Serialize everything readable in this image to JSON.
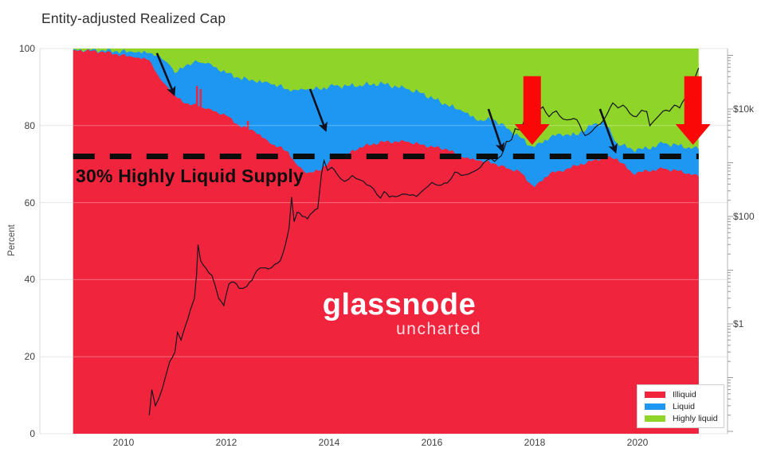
{
  "title": "Entity-adjusted Realized Cap",
  "watermark": {
    "brand": "glassnode",
    "sub": "uncharted"
  },
  "annotation": {
    "label": "30% Highly Liquid Supply",
    "level_pct": 72
  },
  "legend": [
    {
      "label": "Illiquid",
      "color": "#f0253d"
    },
    {
      "label": "Liquid",
      "color": "#1e97f3"
    },
    {
      "label": "Highly liquid",
      "color": "#8fd428"
    }
  ],
  "colors": {
    "red_arrow": "#fa0707",
    "black_arrow": "#10101e",
    "dashed_line": "#0c0c0c",
    "price_line": "#15151f"
  },
  "axes": {
    "left_label": "Percent",
    "left_ticks": [
      0,
      20,
      40,
      60,
      80,
      100
    ],
    "right_ticks": [
      {
        "label": "$10k",
        "value": 10000
      },
      {
        "label": "$100",
        "value": 100
      },
      {
        "label": "$1",
        "value": 1
      }
    ],
    "x_ticks": [
      2010,
      2012,
      2014,
      2016,
      2018,
      2020
    ]
  },
  "arrows": {
    "black": [
      {
        "from": [
          2010.65,
          98.8
        ],
        "to": [
          2010.98,
          88.2
        ]
      },
      {
        "from": [
          2013.63,
          89.5
        ],
        "to": [
          2013.93,
          78.9
        ]
      },
      {
        "from": [
          2017.1,
          84.3
        ],
        "to": [
          2017.37,
          73.6
        ]
      },
      {
        "from": [
          2019.27,
          84.3
        ],
        "to": [
          2019.57,
          73.3
        ]
      }
    ],
    "red": [
      {
        "year": 2017.95,
        "top_pct": 92.8,
        "tip_pct": 75.0
      },
      {
        "year": 2021.08,
        "top_pct": 92.8,
        "tip_pct": 75.0
      }
    ]
  },
  "chart_data": {
    "type": "area",
    "stacked": true,
    "title": "Entity-adjusted Realized Cap",
    "xlabel": "",
    "ylabel": "Percent",
    "ylim_pct": [
      0,
      100
    ],
    "x_range_years": [
      2009.0,
      2021.2
    ],
    "y2_scale": "log",
    "y2_label_ticks": [
      "$10k",
      "$100",
      "$1"
    ],
    "grid": true,
    "legend_position": "bottom-right",
    "x_years": [
      2009.02,
      2009.6,
      2010.2,
      2010.5,
      2010.7,
      2010.9,
      2011.0,
      2011.2,
      2011.45,
      2011.6,
      2011.8,
      2012.0,
      2012.25,
      2012.55,
      2012.85,
      2013.2,
      2013.35,
      2013.55,
      2013.8,
      2014.1,
      2014.35,
      2014.6,
      2015.05,
      2015.5,
      2015.8,
      2016.3,
      2016.6,
      2016.9,
      2017.2,
      2017.5,
      2017.7,
      2017.9,
      2018.0,
      2018.3,
      2018.5,
      2018.8,
      2019.1,
      2019.35,
      2019.6,
      2019.9,
      2020.2,
      2020.5,
      2020.8,
      2021.0,
      2021.19
    ],
    "series": [
      {
        "name": "Illiquid",
        "color": "#f0253d",
        "values": [
          99.6,
          99.2,
          97.7,
          97.0,
          92.4,
          89.3,
          87.8,
          85.7,
          85.1,
          84.3,
          83.7,
          82.6,
          80.0,
          78.5,
          75.4,
          73.3,
          70.2,
          67.6,
          68.2,
          71.7,
          72.5,
          74.4,
          75.8,
          75.8,
          75.0,
          73.8,
          71.7,
          70.9,
          70.2,
          68.8,
          68.2,
          65.1,
          64.0,
          67.6,
          68.2,
          69.6,
          70.7,
          71.7,
          71.5,
          67.6,
          68.2,
          68.8,
          68.2,
          67.6,
          66.7
        ]
      },
      {
        "name": "Liquid",
        "color": "#1e97f3",
        "values": [
          0.2,
          0.4,
          1.3,
          1.8,
          5.7,
          6.4,
          5.8,
          9.8,
          11.4,
          11.8,
          11.5,
          11.0,
          12.4,
          13.0,
          15.5,
          16.2,
          19.1,
          21.7,
          21.3,
          18.6,
          17.8,
          16.1,
          15.1,
          13.7,
          13.4,
          11.5,
          12.0,
          10.3,
          11.4,
          10.3,
          8.9,
          9.7,
          10.4,
          9.3,
          9.7,
          7.9,
          9.3,
          9.3,
          4.0,
          6.2,
          5.8,
          6.6,
          6.6,
          6.8,
          7.1
        ]
      },
      {
        "name": "Highly liquid",
        "color": "#8fd428",
        "values": [
          0.2,
          0.4,
          1.0,
          1.2,
          1.9,
          4.3,
          6.4,
          4.5,
          3.5,
          3.9,
          4.8,
          6.4,
          7.6,
          8.5,
          9.1,
          10.5,
          10.7,
          10.7,
          10.5,
          9.7,
          9.7,
          9.5,
          9.1,
          10.5,
          11.6,
          14.7,
          16.3,
          18.8,
          18.4,
          20.9,
          22.9,
          25.2,
          25.6,
          23.1,
          22.1,
          22.5,
          20.0,
          19.0,
          24.5,
          26.2,
          26.0,
          24.6,
          25.2,
          25.6,
          26.2
        ]
      }
    ],
    "illiquid_spikes": [
      {
        "year": 2011.43,
        "pct": 90.3
      },
      {
        "year": 2011.5,
        "pct": 89.5
      },
      {
        "year": 2012.42,
        "pct": 81.2
      }
    ],
    "overlay_price_usd": [
      [
        2010.5,
        0.02
      ],
      [
        2010.55,
        0.06
      ],
      [
        2010.62,
        0.03
      ],
      [
        2010.75,
        0.06
      ],
      [
        2010.9,
        0.2
      ],
      [
        2011.0,
        0.3
      ],
      [
        2011.05,
        0.7
      ],
      [
        2011.12,
        0.5
      ],
      [
        2011.2,
        0.9
      ],
      [
        2011.3,
        1.8
      ],
      [
        2011.38,
        3
      ],
      [
        2011.42,
        8
      ],
      [
        2011.45,
        30
      ],
      [
        2011.5,
        15
      ],
      [
        2011.6,
        11
      ],
      [
        2011.72,
        8
      ],
      [
        2011.85,
        3
      ],
      [
        2011.95,
        2.2
      ],
      [
        2012.05,
        5.5
      ],
      [
        2012.15,
        6
      ],
      [
        2012.25,
        4.6
      ],
      [
        2012.4,
        5
      ],
      [
        2012.5,
        6.5
      ],
      [
        2012.6,
        10
      ],
      [
        2012.72,
        11
      ],
      [
        2012.82,
        10.5
      ],
      [
        2012.95,
        13
      ],
      [
        2013.05,
        15
      ],
      [
        2013.15,
        30
      ],
      [
        2013.22,
        60
      ],
      [
        2013.27,
        230
      ],
      [
        2013.32,
        80
      ],
      [
        2013.38,
        120
      ],
      [
        2013.48,
        100
      ],
      [
        2013.58,
        90
      ],
      [
        2013.68,
        120
      ],
      [
        2013.78,
        140
      ],
      [
        2013.85,
        600
      ],
      [
        2013.9,
        1100
      ],
      [
        2013.97,
        720
      ],
      [
        2014.05,
        820
      ],
      [
        2014.15,
        620
      ],
      [
        2014.3,
        450
      ],
      [
        2014.45,
        580
      ],
      [
        2014.6,
        480
      ],
      [
        2014.8,
        370
      ],
      [
        2015.0,
        220
      ],
      [
        2015.07,
        290
      ],
      [
        2015.17,
        230
      ],
      [
        2015.35,
        240
      ],
      [
        2015.5,
        260
      ],
      [
        2015.7,
        235
      ],
      [
        2015.85,
        320
      ],
      [
        2016.0,
        430
      ],
      [
        2016.12,
        380
      ],
      [
        2016.3,
        420
      ],
      [
        2016.45,
        670
      ],
      [
        2016.57,
        580
      ],
      [
        2016.72,
        620
      ],
      [
        2016.88,
        740
      ],
      [
        2017.0,
        980
      ],
      [
        2017.15,
        1200
      ],
      [
        2017.22,
        1060
      ],
      [
        2017.35,
        1350
      ],
      [
        2017.45,
        2500
      ],
      [
        2017.55,
        2700
      ],
      [
        2017.62,
        4300
      ],
      [
        2017.72,
        4100
      ],
      [
        2017.82,
        7000
      ],
      [
        2017.9,
        9500
      ],
      [
        2017.96,
        19000
      ],
      [
        2018.08,
        9500
      ],
      [
        2018.16,
        11000
      ],
      [
        2018.28,
        7200
      ],
      [
        2018.42,
        9200
      ],
      [
        2018.55,
        6500
      ],
      [
        2018.7,
        6400
      ],
      [
        2018.82,
        6300
      ],
      [
        2018.92,
        4000
      ],
      [
        2018.98,
        3200
      ],
      [
        2019.12,
        3900
      ],
      [
        2019.28,
        5300
      ],
      [
        2019.42,
        8500
      ],
      [
        2019.52,
        13000
      ],
      [
        2019.62,
        10500
      ],
      [
        2019.72,
        11800
      ],
      [
        2019.85,
        8300
      ],
      [
        2019.98,
        7200
      ],
      [
        2020.08,
        9500
      ],
      [
        2020.18,
        9000
      ],
      [
        2020.24,
        4900
      ],
      [
        2020.38,
        6900
      ],
      [
        2020.5,
        9200
      ],
      [
        2020.62,
        9100
      ],
      [
        2020.72,
        11800
      ],
      [
        2020.82,
        10500
      ],
      [
        2020.92,
        15500
      ],
      [
        2021.0,
        29000
      ],
      [
        2021.06,
        33500
      ],
      [
        2021.12,
        38500
      ],
      [
        2021.16,
        49000
      ],
      [
        2021.19,
        58000
      ]
    ]
  }
}
